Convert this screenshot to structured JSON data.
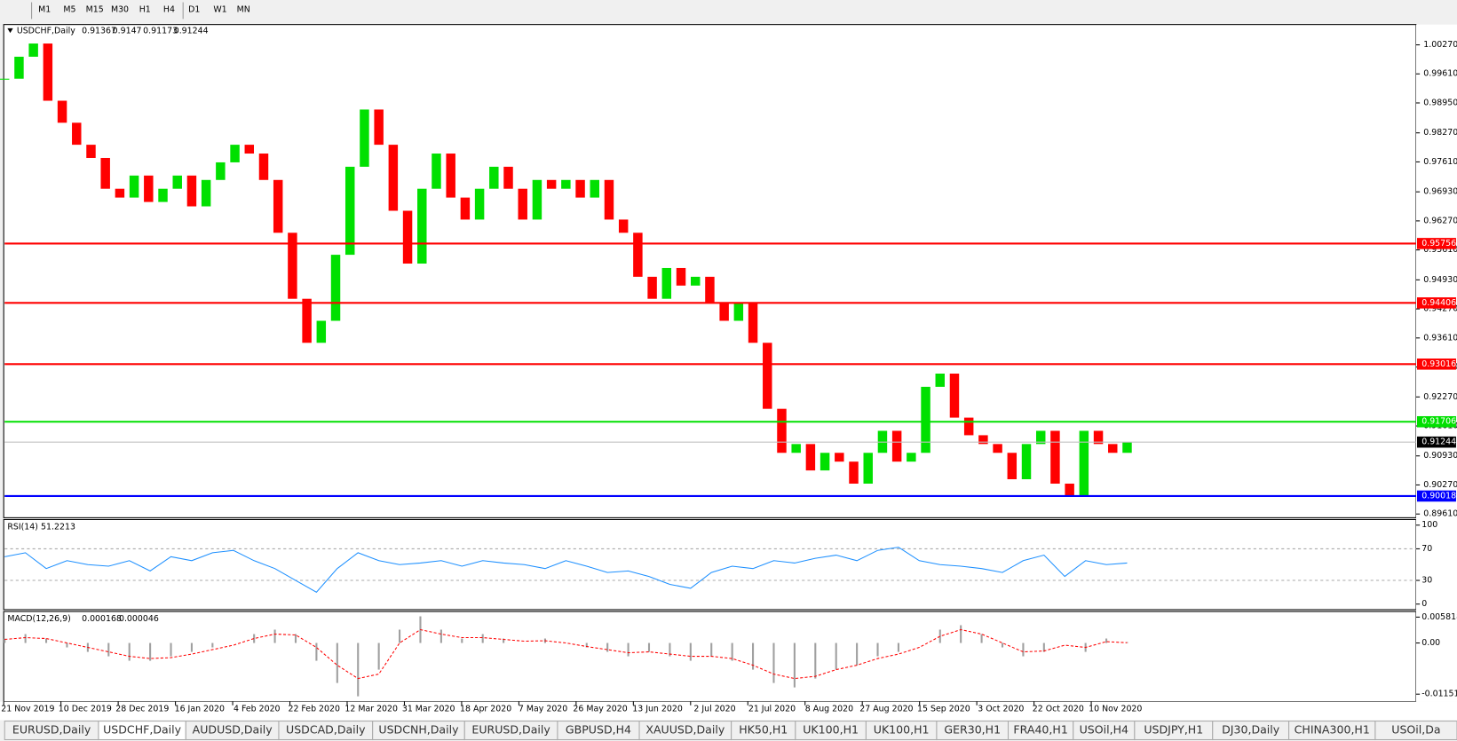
{
  "toolbar": {
    "timeframes": [
      "M1",
      "M5",
      "M15",
      "M30",
      "H1",
      "H4",
      "D1",
      "W1",
      "MN"
    ]
  },
  "chart_data": [
    {
      "type": "candlestick",
      "title": "USDCHF,Daily",
      "ohlc": [
        0.91367,
        0.9147,
        0.91173,
        0.91244
      ],
      "closes": [
        0.995,
        1.0,
        1.003,
        0.99,
        0.985,
        0.98,
        0.977,
        0.97,
        0.968,
        0.973,
        0.967,
        0.97,
        0.973,
        0.966,
        0.972,
        0.976,
        0.98,
        0.978,
        0.972,
        0.96,
        0.945,
        0.935,
        0.94,
        0.955,
        0.975,
        0.988,
        0.98,
        0.965,
        0.953,
        0.97,
        0.978,
        0.968,
        0.963,
        0.97,
        0.975,
        0.97,
        0.963,
        0.972,
        0.97,
        0.972,
        0.968,
        0.972,
        0.963,
        0.96,
        0.95,
        0.945,
        0.952,
        0.948,
        0.95,
        0.944,
        0.94,
        0.944,
        0.935,
        0.92,
        0.91,
        0.912,
        0.906,
        0.91,
        0.908,
        0.903,
        0.91,
        0.915,
        0.908,
        0.91,
        0.925,
        0.928,
        0.918,
        0.914,
        0.912,
        0.91,
        0.904,
        0.912,
        0.915,
        0.903,
        0.9,
        0.915,
        0.912,
        0.91,
        0.91244
      ],
      "up_color": "#00e000",
      "down_color": "#ff0000",
      "ylim": [
        0.89547,
        1.0071
      ],
      "yticks": [
        {
          "value": 1.0027,
          "label": "1.00270"
        },
        {
          "value": 0.9961,
          "label": "0.99610"
        },
        {
          "value": 0.9895,
          "label": "0.98950"
        },
        {
          "value": 0.9827,
          "label": "0.98270"
        },
        {
          "value": 0.9761,
          "label": "0.97610"
        },
        {
          "value": 0.9693,
          "label": "0.96930"
        },
        {
          "value": 0.9627,
          "label": "0.96270"
        },
        {
          "value": 0.9561,
          "label": "0.95610"
        },
        {
          "value": 0.9493,
          "label": "0.94930"
        },
        {
          "value": 0.9427,
          "label": "0.94270"
        },
        {
          "value": 0.9361,
          "label": "0.93610"
        },
        {
          "value": 0.9295,
          "label": "0.92950"
        },
        {
          "value": 0.9227,
          "label": "0.92270"
        },
        {
          "value": 0.9161,
          "label": "0.91610"
        },
        {
          "value": 0.9093,
          "label": "0.90930"
        },
        {
          "value": 0.9027,
          "label": "0.90270"
        },
        {
          "value": 0.8961,
          "label": "0.89610"
        }
      ],
      "levels": [
        {
          "value": 0.95756,
          "color": "#ff0000"
        },
        {
          "value": 0.94406,
          "color": "#ff0000"
        },
        {
          "value": 0.93016,
          "color": "#ff0000"
        },
        {
          "value": 0.91706,
          "color": "#00e000"
        },
        {
          "value": 0.90018,
          "color": "#0000ff"
        }
      ],
      "current_price": 0.91244,
      "xticks": [
        "21 Nov 2019",
        "10 Dec 2019",
        "28 Dec 2019",
        "16 Jan 2020",
        "4 Feb 2020",
        "22 Feb 2020",
        "12 Mar 2020",
        "31 Mar 2020",
        "18 Apr 2020",
        "7 May 2020",
        "26 May 2020",
        "13 Jun 2020",
        "2 Jul 2020",
        "21 Jul 2020",
        "8 Aug 2020",
        "27 Aug 2020",
        "15 Sep 2020",
        "3 Oct 2020",
        "22 Oct 2020",
        "10 Nov 2020"
      ]
    },
    {
      "type": "line",
      "title": "RSI(14)",
      "last": 51.2213,
      "color": "#1e90ff",
      "values": [
        60,
        65,
        45,
        55,
        50,
        48,
        55,
        42,
        60,
        55,
        65,
        68,
        55,
        45,
        30,
        15,
        45,
        65,
        55,
        50,
        52,
        55,
        48,
        55,
        52,
        50,
        45,
        55,
        48,
        40,
        42,
        35,
        25,
        20,
        40,
        48,
        45,
        55,
        52,
        58,
        62,
        55,
        68,
        72,
        55,
        50,
        48,
        45,
        40,
        55,
        62,
        35,
        55,
        50,
        52
      ],
      "ylim": [
        0,
        100
      ],
      "yticks": [
        100,
        70,
        30,
        0
      ]
    },
    {
      "type": "macd",
      "title": "MACD(12,26,9)",
      "last": [
        0.000168,
        4.6e-05
      ],
      "hist_color": "#a0a0a0",
      "signal_color": "#ff0000",
      "histogram": [
        0.001,
        0.002,
        0.001,
        -0.001,
        -0.002,
        -0.003,
        -0.004,
        -0.004,
        -0.003,
        -0.002,
        -0.001,
        0.0,
        0.002,
        0.003,
        0.002,
        -0.004,
        -0.009,
        -0.012,
        -0.006,
        0.003,
        0.006,
        0.003,
        0.001,
        0.002,
        0.001,
        0.0,
        0.001,
        0.0,
        -0.001,
        -0.002,
        -0.003,
        -0.002,
        -0.003,
        -0.004,
        -0.003,
        -0.004,
        -0.006,
        -0.009,
        -0.01,
        -0.008,
        -0.006,
        -0.005,
        -0.003,
        -0.002,
        0.0,
        0.003,
        0.004,
        0.002,
        -0.001,
        -0.003,
        -0.002,
        0.0,
        -0.002,
        0.001,
        0.0002
      ],
      "signal": [
        0.0008,
        0.0012,
        0.001,
        0.0,
        -0.001,
        -0.002,
        -0.003,
        -0.0035,
        -0.0033,
        -0.0025,
        -0.0015,
        -0.0005,
        0.001,
        0.002,
        0.0018,
        -0.001,
        -0.005,
        -0.008,
        -0.007,
        0.0,
        0.003,
        0.002,
        0.0012,
        0.0012,
        0.0008,
        0.0004,
        0.0005,
        0.0,
        -0.0008,
        -0.0015,
        -0.0022,
        -0.002,
        -0.0025,
        -0.003,
        -0.003,
        -0.0035,
        -0.005,
        -0.007,
        -0.008,
        -0.0075,
        -0.006,
        -0.005,
        -0.0035,
        -0.0025,
        -0.001,
        0.0015,
        0.003,
        0.002,
        0.0,
        -0.002,
        -0.0018,
        -0.0005,
        -0.001,
        0.0003,
        5e-05
      ],
      "ylim": [
        -0.01298,
        0.00687
      ],
      "yticks": [
        0.005818,
        {
          "value": 0,
          "label": "0.00"
        },
        -0.011514
      ]
    }
  ],
  "tabs": [
    "EURUSD,Daily",
    "USDCHF,Daily",
    "AUDUSD,Daily",
    "USDCAD,Daily",
    "USDCNH,Daily",
    "EURUSD,Daily",
    "GBPUSD,H4",
    "XAUUSD,Daily",
    "HK50,H1",
    "UK100,H1",
    "UK100,H1",
    "GER30,H1",
    "FRA40,H1",
    "USOil,H4",
    "USDJPY,H1",
    "DJ30,Daily",
    "CHINA300,H1",
    "USOil,Da"
  ],
  "active_tab": 1
}
